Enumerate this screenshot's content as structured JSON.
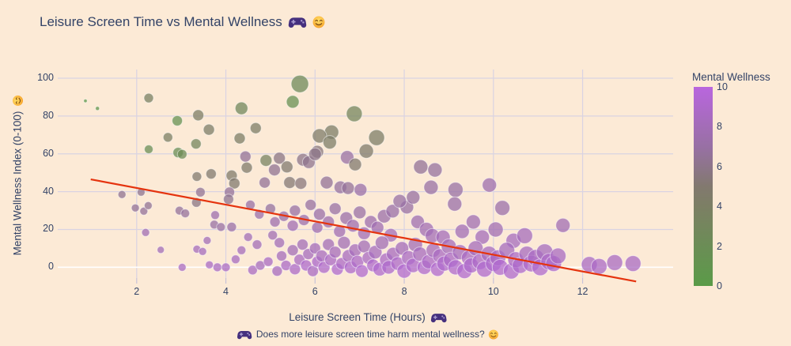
{
  "title": {
    "text": "Leisure Screen Time vs Mental Wellness",
    "icons": [
      "gamepad-icon",
      "smiley-icon"
    ]
  },
  "x_axis": {
    "label_text": "Leisure Screen Time (Hours)",
    "icon": "gamepad-icon",
    "ticks": [
      2,
      4,
      6,
      8,
      10,
      12
    ]
  },
  "y_axis": {
    "label_text": "Mental Wellness Index (0-100)",
    "icon": "smiley-icon",
    "ticks": [
      0,
      20,
      40,
      60,
      80,
      100
    ]
  },
  "caption": {
    "prefix_icon": "gamepad-icon",
    "text": "Does more leisure screen time harm mental wellness?",
    "suffix_icon": "smiley-icon"
  },
  "colorbar": {
    "title": "Mental Wellness",
    "min": 0,
    "max": 10,
    "ticks": [
      0,
      2,
      4,
      6,
      8,
      10
    ]
  },
  "colors": {
    "background": "#fcead6",
    "text": "#334367",
    "grid": "#d9d3e2",
    "zeroline": "#ffffff",
    "tick_mark": "#c8c2d8",
    "trend": "#e5330e",
    "point_stroke": "#ffffff"
  },
  "chart_data": {
    "type": "scatter",
    "title": "Leisure Screen Time vs Mental Wellness",
    "xlabel": "Leisure Screen Time (Hours)",
    "ylabel": "Mental Wellness Index (0-100)",
    "x_range": [
      0.23,
      14.03
    ],
    "y_range": [
      -5.7,
      104.6
    ],
    "x_ticks": [
      2,
      4,
      6,
      8,
      10,
      12
    ],
    "y_ticks": [
      0,
      20,
      40,
      60,
      80,
      100
    ],
    "grid": true,
    "color_axis": {
      "title": "Mental Wellness",
      "min": 0,
      "max": 10,
      "ticks": [
        0,
        2,
        4,
        6,
        8,
        10
      ]
    },
    "color_stops": [
      [
        0,
        "#5a9b48"
      ],
      [
        4,
        "#7c7f64"
      ],
      [
        5,
        "#82796f"
      ],
      [
        7,
        "#9870a4"
      ],
      [
        10,
        "#b966de"
      ]
    ],
    "point_style": {
      "fill_opacity": 0.75,
      "stroke_opacity": 0.5,
      "stroke_width": 1
    },
    "trend_line": {
      "points": [
        [
          0.97,
          46.5
        ],
        [
          13.2,
          -7.5
        ]
      ],
      "color": "#e5330e",
      "width": 2.2
    },
    "points": [
      [
        0.85,
        88,
        2.2,
        0.5
      ],
      [
        1.12,
        84,
        2.5,
        0.8
      ],
      [
        2.27,
        89.5,
        6,
        3.8
      ],
      [
        2.91,
        77.5,
        6.5,
        1.5
      ],
      [
        3.38,
        80.4,
        7,
        4.2
      ],
      [
        2.27,
        62.4,
        5.5,
        2.0
      ],
      [
        2.7,
        68.7,
        6,
        4.0
      ],
      [
        2.93,
        60.7,
        6.5,
        1.8
      ],
      [
        3.02,
        59.8,
        6,
        2.2
      ],
      [
        3.33,
        65.3,
        6.5,
        3.0
      ],
      [
        3.62,
        72.8,
        7,
        4.4
      ],
      [
        4.35,
        84.1,
        8,
        2.8
      ],
      [
        4.31,
        68.2,
        7,
        4.2
      ],
      [
        4.67,
        73.6,
        7,
        4.3
      ],
      [
        5.66,
        97,
        11,
        2.5
      ],
      [
        5.5,
        87.5,
        8,
        1.6
      ],
      [
        6.88,
        81.2,
        10,
        3.2
      ],
      [
        6.37,
        71.5,
        9,
        4.3
      ],
      [
        6.1,
        69.5,
        9,
        4.5
      ],
      [
        6.33,
        66.1,
        8.5,
        4.4
      ],
      [
        7.38,
        68.6,
        10,
        4.3
      ],
      [
        7.15,
        61.5,
        9,
        4.6
      ],
      [
        6.05,
        61.1,
        8,
        5.5
      ],
      [
        4.44,
        58.6,
        7,
        6.5
      ],
      [
        4.9,
        56.5,
        7.5,
        3.5
      ],
      [
        5.2,
        57.7,
        7.5,
        5.8
      ],
      [
        4.47,
        52.7,
        7,
        4.6
      ],
      [
        5.73,
        56.9,
        8,
        6.0
      ],
      [
        5.86,
        55.6,
        8,
        6.2
      ],
      [
        6.0,
        59.8,
        8,
        6.0
      ],
      [
        6.72,
        58.2,
        8.5,
        7.0
      ],
      [
        6.9,
        54.4,
        8,
        5.0
      ],
      [
        5.09,
        51.5,
        7.5,
        6.3
      ],
      [
        5.37,
        53.1,
        7.5,
        5.0
      ],
      [
        8.37,
        53.1,
        9,
        6.5
      ],
      [
        8.69,
        51.5,
        9,
        6.8
      ],
      [
        3.35,
        48,
        6,
        5.0
      ],
      [
        3.67,
        49.4,
        6.5,
        5.0
      ],
      [
        4.13,
        48.5,
        7,
        4.6
      ],
      [
        4.19,
        44.4,
        7,
        5.0
      ],
      [
        4.87,
        44.8,
        7,
        6.5
      ],
      [
        5.43,
        44.8,
        7.5,
        5.2
      ],
      [
        5.68,
        44.4,
        7.5,
        5.5
      ],
      [
        6.26,
        44.8,
        8,
        6.5
      ],
      [
        6.57,
        42.3,
        8,
        6.8
      ],
      [
        6.74,
        41.9,
        8,
        6.6
      ],
      [
        7.02,
        41,
        8,
        7.2
      ],
      [
        8.6,
        42.3,
        9,
        7.0
      ],
      [
        9.15,
        41,
        9.5,
        7.0
      ],
      [
        9.91,
        43.5,
        9,
        7.5
      ],
      [
        4.08,
        39.7,
        6.5,
        6.6
      ],
      [
        3.43,
        39.7,
        6,
        6.4
      ],
      [
        2.1,
        39.7,
        5,
        6.2
      ],
      [
        1.67,
        38.5,
        5,
        6.3
      ],
      [
        1.97,
        31.4,
        5,
        6.5
      ],
      [
        2.16,
        29.7,
        5,
        6.6
      ],
      [
        2.26,
        32.6,
        5,
        6.4
      ],
      [
        2.96,
        30,
        5.5,
        6.6
      ],
      [
        3.09,
        28.5,
        5.5,
        6.7
      ],
      [
        3.34,
        34.3,
        6,
        5.8
      ],
      [
        3.74,
        22.6,
        5.5,
        7.0
      ],
      [
        3.89,
        21.3,
        5.5,
        7.0
      ],
      [
        4.13,
        21.3,
        6,
        7.2
      ],
      [
        3.76,
        27.6,
        5.5,
        7.5
      ],
      [
        4.06,
        36,
        6.5,
        6.2
      ],
      [
        4.55,
        33,
        6,
        7.0
      ],
      [
        4.75,
        28,
        6,
        7.3
      ],
      [
        5.0,
        31,
        6.5,
        6.8
      ],
      [
        5.1,
        24,
        6.5,
        7.5
      ],
      [
        5.3,
        27,
        6.5,
        7.2
      ],
      [
        5.5,
        22,
        7,
        7.8
      ],
      [
        5.55,
        30,
        7,
        7.0
      ],
      [
        5.75,
        25,
        7,
        7.4
      ],
      [
        5.9,
        33,
        7,
        6.9
      ],
      [
        6.05,
        21,
        7,
        7.6
      ],
      [
        6.1,
        28,
        7.5,
        7.2
      ],
      [
        6.3,
        24,
        7.5,
        7.5
      ],
      [
        6.45,
        31,
        7.5,
        7.0
      ],
      [
        6.55,
        19,
        7.5,
        7.8
      ],
      [
        6.7,
        26,
        8,
        7.3
      ],
      [
        6.85,
        22,
        8,
        7.6
      ],
      [
        7.0,
        29,
        8,
        7.1
      ],
      [
        7.1,
        18,
        8,
        7.9
      ],
      [
        7.25,
        24,
        8,
        7.5
      ],
      [
        7.4,
        21,
        8,
        7.7
      ],
      [
        7.55,
        27,
        8.5,
        7.3
      ],
      [
        7.7,
        17,
        8.5,
        8.0
      ],
      [
        7.74,
        29.7,
        8.5,
        7.2
      ],
      [
        8.06,
        31.8,
        8.5,
        7.0
      ],
      [
        8.3,
        24,
        8.5,
        7.6
      ],
      [
        8.5,
        20,
        9,
        7.8
      ],
      [
        8.63,
        16.7,
        9,
        8.0
      ],
      [
        8.87,
        15.9,
        9,
        8.1
      ],
      [
        9.13,
        33.5,
        9,
        7.2
      ],
      [
        9.3,
        19,
        9,
        7.9
      ],
      [
        9.55,
        24,
        9,
        7.7
      ],
      [
        10.2,
        31.4,
        9.5,
        7.3
      ],
      [
        10.45,
        14,
        9.5,
        8.3
      ],
      [
        10.7,
        16.7,
        10,
        8.2
      ],
      [
        11.56,
        22.2,
        9,
        7.8
      ],
      [
        10.05,
        20,
        9.5,
        7.8
      ],
      [
        9.75,
        16,
        9,
        8.1
      ],
      [
        7.9,
        35,
        8.5,
        7.0
      ],
      [
        8.2,
        37,
        8.5,
        6.9
      ],
      [
        2.54,
        9.2,
        4.5,
        8.0
      ],
      [
        3.02,
        0,
        5,
        8.5
      ],
      [
        3.35,
        9.6,
        5,
        8.2
      ],
      [
        3.48,
        8.4,
        5,
        8.3
      ],
      [
        3.58,
        14.2,
        5,
        8.0
      ],
      [
        3.63,
        1.3,
        5,
        8.6
      ],
      [
        3.81,
        0,
        5.5,
        8.5
      ],
      [
        4.22,
        4.2,
        5.5,
        8.4
      ],
      [
        2.2,
        18.4,
        5,
        7.8
      ],
      [
        4.0,
        0,
        5.5,
        8.6
      ],
      [
        4.35,
        9,
        5.5,
        8.2
      ],
      [
        4.5,
        16,
        5.5,
        7.9
      ],
      [
        4.7,
        12,
        6,
        8.0
      ],
      [
        5.05,
        17,
        6,
        7.8
      ],
      [
        5.2,
        13,
        6.5,
        8.0
      ],
      [
        4.6,
        -1.5,
        6,
        8.5
      ],
      [
        4.77,
        1,
        6,
        8.3
      ],
      [
        4.95,
        3,
        6,
        8.6
      ],
      [
        5.15,
        -2,
        6.5,
        8.4
      ],
      [
        5.25,
        6,
        6.5,
        8.2
      ],
      [
        5.35,
        1,
        6.5,
        8.7
      ],
      [
        5.5,
        9,
        7,
        8.0
      ],
      [
        5.55,
        -1,
        7,
        8.8
      ],
      [
        5.65,
        4,
        7,
        8.5
      ],
      [
        5.72,
        12,
        7,
        8.0
      ],
      [
        5.8,
        1,
        7,
        9.0
      ],
      [
        5.85,
        7,
        7,
        8.3
      ],
      [
        5.95,
        -2,
        7,
        8.6
      ],
      [
        6.0,
        10,
        7,
        8.1
      ],
      [
        6.05,
        3,
        7,
        8.9
      ],
      [
        6.15,
        6,
        7.5,
        8.4
      ],
      [
        6.2,
        0,
        7.5,
        9.0
      ],
      [
        6.3,
        12,
        7.5,
        8.0
      ],
      [
        6.35,
        4,
        7.5,
        8.7
      ],
      [
        6.45,
        8,
        7.5,
        8.2
      ],
      [
        6.5,
        -1,
        7.5,
        9.1
      ],
      [
        6.6,
        2,
        7.5,
        8.8
      ],
      [
        6.65,
        13,
        8,
        7.9
      ],
      [
        6.75,
        6,
        8,
        8.4
      ],
      [
        6.8,
        0,
        8,
        9.0
      ],
      [
        6.9,
        9,
        8,
        8.2
      ],
      [
        6.95,
        3,
        8,
        8.8
      ],
      [
        7.05,
        -2,
        8,
        9.2
      ],
      [
        7.1,
        11,
        8,
        8.0
      ],
      [
        7.2,
        5,
        8,
        8.6
      ],
      [
        7.3,
        1,
        8,
        9.0
      ],
      [
        7.35,
        8,
        8.5,
        8.3
      ],
      [
        7.45,
        -1,
        8.5,
        9.1
      ],
      [
        7.5,
        13,
        8.5,
        7.9
      ],
      [
        7.6,
        4,
        8.5,
        8.7
      ],
      [
        7.65,
        0,
        8.5,
        9.0
      ],
      [
        7.75,
        7,
        8.5,
        8.4
      ],
      [
        7.85,
        2,
        8.5,
        8.9
      ],
      [
        7.95,
        10,
        8.5,
        8.1
      ],
      [
        8.0,
        -2,
        9,
        9.2
      ],
      [
        8.1,
        5,
        9,
        8.6
      ],
      [
        8.2,
        1,
        9,
        9.0
      ],
      [
        8.25,
        12,
        9,
        8.0
      ],
      [
        8.35,
        7,
        9,
        8.4
      ],
      [
        8.45,
        0,
        9,
        9.1
      ],
      [
        8.55,
        3,
        9,
        8.8
      ],
      [
        8.65,
        9,
        9,
        8.2
      ],
      [
        8.75,
        -1,
        9,
        9.2
      ],
      [
        8.8,
        6,
        9,
        8.5
      ],
      [
        8.9,
        2,
        9.5,
        9.0
      ],
      [
        9.0,
        11,
        9.5,
        8.1
      ],
      [
        9.05,
        4,
        9.5,
        8.7
      ],
      [
        9.15,
        0,
        9.5,
        9.1
      ],
      [
        9.25,
        8,
        9.5,
        8.3
      ],
      [
        9.35,
        -2,
        9.5,
        9.2
      ],
      [
        9.45,
        5,
        9.5,
        8.6
      ],
      [
        9.5,
        1,
        9.5,
        9.0
      ],
      [
        9.6,
        10,
        9.5,
        8.2
      ],
      [
        9.7,
        3,
        10,
        8.8
      ],
      [
        9.8,
        -1,
        10,
        9.1
      ],
      [
        9.9,
        7,
        10,
        8.4
      ],
      [
        10.0,
        2,
        10,
        9.0
      ],
      [
        10.1,
        5,
        10,
        8.6
      ],
      [
        10.15,
        0,
        10,
        9.2
      ],
      [
        10.3,
        9,
        10,
        8.3
      ],
      [
        10.4,
        -2,
        10,
        9.1
      ],
      [
        10.5,
        4,
        10,
        8.7
      ],
      [
        10.6,
        1,
        10,
        9.0
      ],
      [
        10.75,
        7,
        10,
        8.4
      ],
      [
        10.85,
        2,
        10.5,
        8.9
      ],
      [
        10.95,
        5,
        10.5,
        8.6
      ],
      [
        11.05,
        0,
        10.5,
        9.1
      ],
      [
        11.15,
        8,
        10.5,
        8.3
      ],
      [
        11.25,
        3,
        10.5,
        8.8
      ],
      [
        11.35,
        2,
        10,
        8.9
      ],
      [
        11.45,
        6,
        10,
        8.5
      ],
      [
        12.15,
        1.5,
        10,
        8.6
      ],
      [
        12.37,
        0.5,
        10,
        8.7
      ],
      [
        12.72,
        2.5,
        10,
        8.5
      ],
      [
        13.13,
        2,
        10,
        8.6
      ]
    ]
  }
}
